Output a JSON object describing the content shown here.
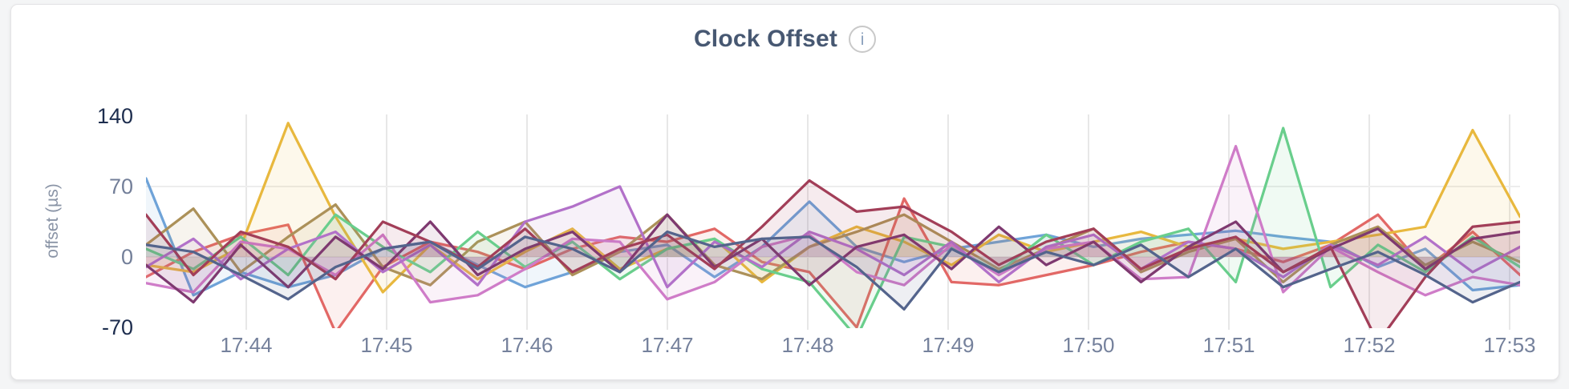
{
  "header": {
    "title": "Clock Offset",
    "info_icon_glyph": "i"
  },
  "chart_data": {
    "type": "line",
    "title": "Clock Offset",
    "xlabel": "",
    "ylabel": "offset (µs)",
    "ylim": [
      -70,
      140
    ],
    "y_ticks": [
      140,
      70,
      0,
      -70
    ],
    "x_ticks": [
      "17:44",
      "17:45",
      "17:46",
      "17:47",
      "17:48",
      "17:49",
      "17:50",
      "17:51",
      "17:52",
      "17:53"
    ],
    "x_start": "17:43:20",
    "x_interval_seconds": 20,
    "grid": "vertical line per minute tick; horizontal lines at 70 and 0",
    "legend_position": "none",
    "area_fill_opacity": 0.1,
    "series": [
      {
        "name": "blue",
        "color": "#6FA3D8",
        "values": [
          78,
          -38,
          -15,
          -30,
          -18,
          8,
          15,
          -8,
          -30,
          -15,
          5,
          12,
          -20,
          10,
          55,
          10,
          -5,
          8,
          15,
          22,
          10,
          18,
          22,
          26,
          20,
          15,
          -10,
          8,
          -33,
          -28
        ]
      },
      {
        "name": "coral",
        "color": "#E26866",
        "values": [
          -20,
          5,
          22,
          32,
          -75,
          -10,
          15,
          5,
          -12,
          8,
          20,
          15,
          28,
          -5,
          -15,
          -70,
          58,
          -25,
          -28,
          -18,
          -8,
          5,
          15,
          8,
          -5,
          12,
          42,
          -12,
          25,
          -18
        ]
      },
      {
        "name": "gold",
        "color": "#E8B83E",
        "values": [
          -8,
          -15,
          10,
          133,
          40,
          -35,
          12,
          -22,
          5,
          28,
          -12,
          8,
          18,
          -25,
          10,
          30,
          15,
          -8,
          22,
          5,
          15,
          25,
          10,
          18,
          8,
          15,
          22,
          30,
          126,
          40
        ]
      },
      {
        "name": "khaki",
        "color": "#AC9159",
        "values": [
          12,
          48,
          -15,
          20,
          52,
          -10,
          -28,
          15,
          35,
          -18,
          5,
          42,
          -8,
          -22,
          10,
          25,
          42,
          15,
          -12,
          8,
          28,
          -15,
          5,
          18,
          -25,
          12,
          30,
          -8,
          15,
          -5
        ]
      },
      {
        "name": "green",
        "color": "#69CE8C",
        "values": [
          8,
          -12,
          20,
          -18,
          42,
          10,
          -15,
          25,
          -10,
          15,
          -22,
          8,
          18,
          -12,
          -25,
          -80,
          20,
          10,
          -15,
          22,
          -8,
          15,
          28,
          -25,
          128,
          -30,
          12,
          -15,
          20,
          -10
        ]
      },
      {
        "name": "orchid",
        "color": "#CF7CC8",
        "values": [
          -26,
          -35,
          15,
          8,
          -18,
          22,
          -45,
          -38,
          -12,
          18,
          15,
          -42,
          -25,
          10,
          22,
          -15,
          -28,
          12,
          -18,
          8,
          15,
          -22,
          -20,
          110,
          -35,
          10,
          -15,
          -38,
          -20,
          -28
        ]
      },
      {
        "name": "violet",
        "color": "#B271C9",
        "values": [
          -10,
          18,
          -22,
          8,
          25,
          -15,
          12,
          -28,
          35,
          50,
          70,
          -30,
          15,
          -10,
          25,
          8,
          -18,
          15,
          -25,
          10,
          22,
          -12,
          15,
          8,
          -20,
          12,
          -8,
          20,
          -15,
          10
        ]
      },
      {
        "name": "plum",
        "color": "#7E3970",
        "values": [
          -8,
          -45,
          12,
          -30,
          20,
          -12,
          35,
          -18,
          8,
          25,
          -15,
          42,
          -10,
          18,
          -28,
          10,
          22,
          -12,
          30,
          -8,
          15,
          -25,
          10,
          35,
          -15,
          8,
          28,
          -12,
          18,
          25
        ]
      },
      {
        "name": "maroon",
        "color": "#A23E58",
        "values": [
          42,
          -18,
          25,
          10,
          -22,
          35,
          15,
          -10,
          28,
          -15,
          8,
          22,
          -12,
          30,
          76,
          45,
          50,
          25,
          -8,
          15,
          28,
          -12,
          8,
          20,
          -15,
          10,
          -85,
          -20,
          30,
          35
        ]
      },
      {
        "name": "slate",
        "color": "#54648C",
        "values": [
          12,
          5,
          -18,
          -42,
          -10,
          8,
          15,
          -12,
          20,
          8,
          -15,
          25,
          10,
          18,
          20,
          -10,
          -52,
          8,
          -15,
          5,
          -8,
          12,
          -20,
          8,
          -30,
          -12,
          5,
          -18,
          -45,
          -25
        ]
      }
    ]
  },
  "colors": {
    "page_background": "#f4f5f6",
    "card_background": "#ffffff",
    "card_border": "#e4e4e6",
    "title_text": "#475872",
    "axis_label_extreme": "#1d2d4e",
    "axis_label_normal": "#737f99",
    "x_axis_label": "#75819c",
    "gridline": "#e7e7e7"
  }
}
